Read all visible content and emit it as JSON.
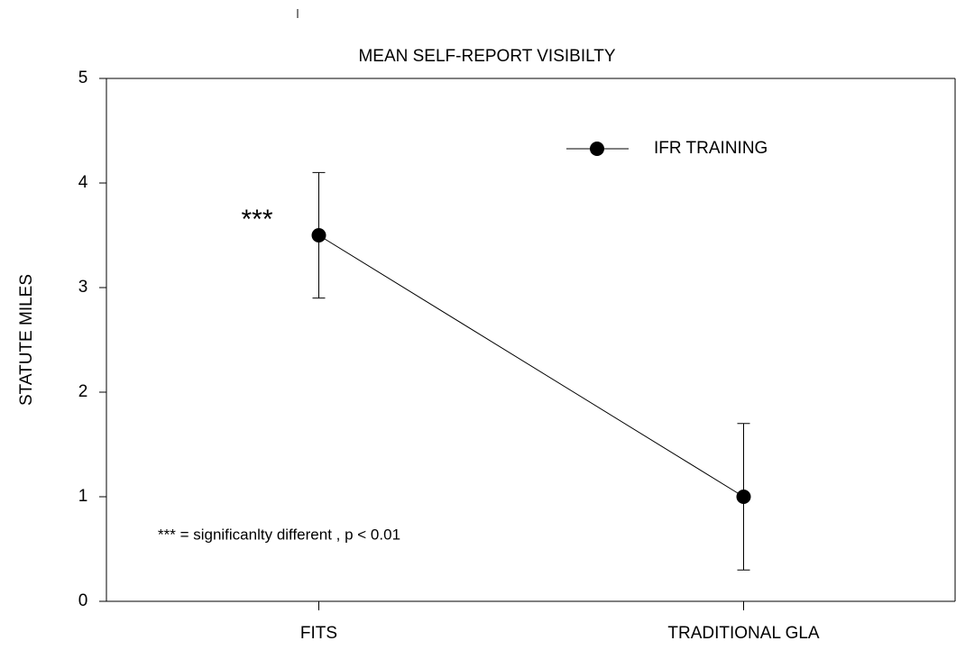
{
  "chart_data": {
    "type": "line",
    "title": "MEAN SELF-REPORT VISIBILTY",
    "y_label": "STATUTE MILES",
    "categories": [
      "FITS",
      "TRADITIONAL GLA"
    ],
    "series": [
      {
        "name": "IFR TRAINING",
        "color": "#000000",
        "values": [
          3.5,
          1.0
        ],
        "errors": [
          0.6,
          0.7
        ]
      }
    ],
    "ylim": [
      0,
      5
    ],
    "yticks": [
      0,
      1,
      2,
      3,
      4,
      5
    ],
    "legend": "upper right",
    "annotations": [
      "***",
      "*** = significanlty different , p < 0.01"
    ]
  }
}
